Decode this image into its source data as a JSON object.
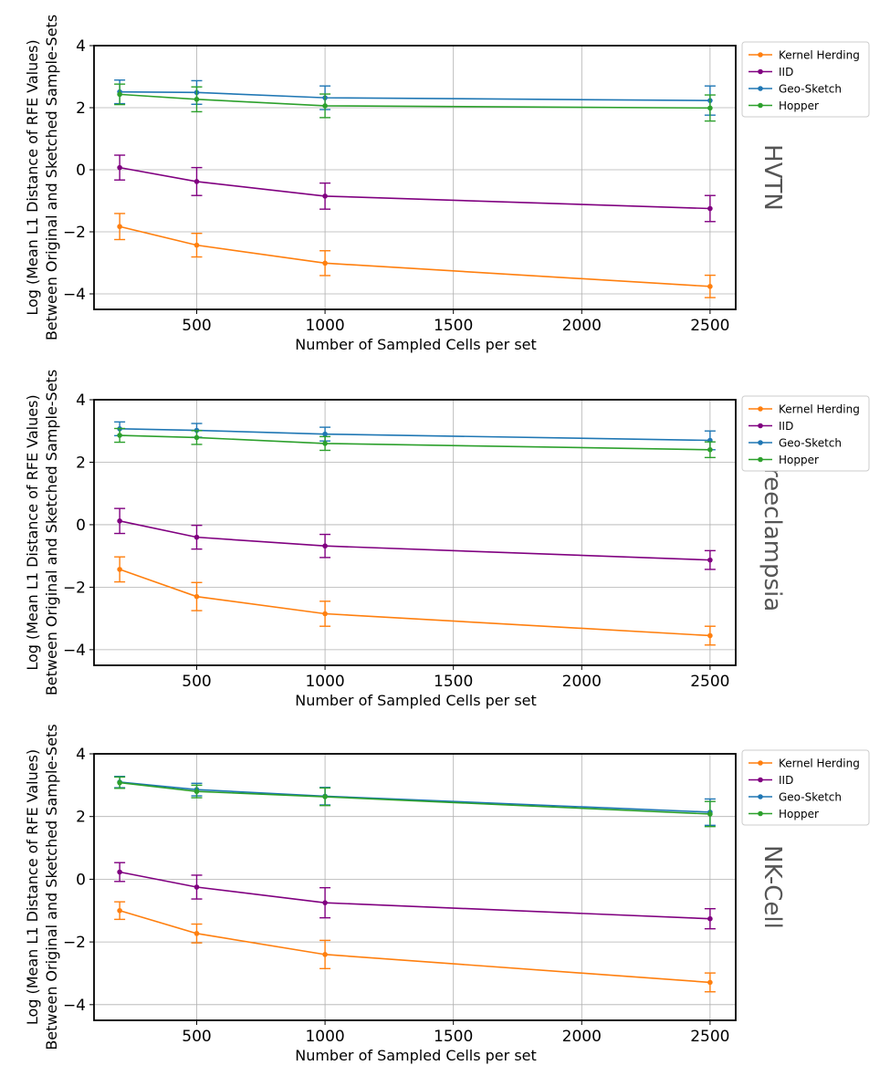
{
  "chart_data": [
    {
      "type": "line",
      "title": "",
      "side_label": "HVTN",
      "xlabel": "Number of Sampled Cells per set",
      "ylabel_line1": "Log (Mean L1 Distance of RFE Values)",
      "ylabel_line2": "Between Original and Sketched Sample-Sets",
      "x": [
        200,
        500,
        1000,
        2500
      ],
      "xlim": [
        100,
        2600
      ],
      "ylim": [
        -4.5,
        4
      ],
      "xticks": [
        500,
        1000,
        1500,
        2000,
        2500
      ],
      "yticks": [
        -4,
        -2,
        0,
        2,
        4
      ],
      "grid": true,
      "legend": "top-right-outside",
      "series": [
        {
          "name": "Kernel Herding",
          "color": "#ff7f0e",
          "values": [
            -1.83,
            -2.43,
            -3.01,
            -3.76
          ],
          "errors": [
            0.42,
            0.38,
            0.4,
            0.36
          ]
        },
        {
          "name": "IID",
          "color": "#800080",
          "values": [
            0.07,
            -0.38,
            -0.85,
            -1.25
          ],
          "errors": [
            0.4,
            0.45,
            0.42,
            0.42
          ]
        },
        {
          "name": "Geo-Sketch",
          "color": "#1f77b4",
          "values": [
            2.51,
            2.49,
            2.32,
            2.23
          ],
          "errors": [
            0.38,
            0.38,
            0.38,
            0.47
          ]
        },
        {
          "name": "Hopper",
          "color": "#2ca02c",
          "values": [
            2.43,
            2.27,
            2.06,
            1.99
          ],
          "errors": [
            0.33,
            0.4,
            0.38,
            0.42
          ]
        }
      ]
    },
    {
      "type": "line",
      "title": "",
      "side_label": "Preeclampsia",
      "xlabel": "Number of Sampled Cells per set",
      "ylabel_line1": "Log (Mean L1 Distance of RFE Values)",
      "ylabel_line2": "Between Original and Sketched Sample-Sets",
      "x": [
        200,
        500,
        1000,
        2500
      ],
      "xlim": [
        100,
        2600
      ],
      "ylim": [
        -4.5,
        4
      ],
      "xticks": [
        500,
        1000,
        1500,
        2000,
        2500
      ],
      "yticks": [
        -4,
        -2,
        0,
        2,
        4
      ],
      "grid": true,
      "legend": "top-right-outside",
      "series": [
        {
          "name": "Kernel Herding",
          "color": "#ff7f0e",
          "values": [
            -1.43,
            -2.3,
            -2.85,
            -3.55
          ],
          "errors": [
            0.4,
            0.45,
            0.4,
            0.3
          ]
        },
        {
          "name": "IID",
          "color": "#800080",
          "values": [
            0.12,
            -0.4,
            -0.68,
            -1.13
          ],
          "errors": [
            0.4,
            0.38,
            0.37,
            0.3
          ]
        },
        {
          "name": "Geo-Sketch",
          "color": "#1f77b4",
          "values": [
            3.07,
            3.02,
            2.9,
            2.7
          ],
          "errors": [
            0.22,
            0.22,
            0.22,
            0.3
          ]
        },
        {
          "name": "Hopper",
          "color": "#2ca02c",
          "values": [
            2.86,
            2.79,
            2.6,
            2.4
          ],
          "errors": [
            0.22,
            0.22,
            0.22,
            0.25
          ]
        }
      ]
    },
    {
      "type": "line",
      "title": "",
      "side_label": "NK-Cell",
      "xlabel": "Number of Sampled Cells per set",
      "ylabel_line1": "Log (Mean L1 Distance of RFE Values)",
      "ylabel_line2": "Between Original and Sketched Sample-Sets",
      "x": [
        200,
        500,
        1000,
        2500
      ],
      "xlim": [
        100,
        2600
      ],
      "ylim": [
        -4.5,
        4
      ],
      "xticks": [
        500,
        1000,
        1500,
        2000,
        2500
      ],
      "yticks": [
        -4,
        -2,
        0,
        2,
        4
      ],
      "grid": true,
      "legend": "top-right-outside",
      "series": [
        {
          "name": "Kernel Herding",
          "color": "#ff7f0e",
          "values": [
            -1.0,
            -1.73,
            -2.4,
            -3.29
          ],
          "errors": [
            0.28,
            0.3,
            0.45,
            0.3
          ]
        },
        {
          "name": "IID",
          "color": "#800080",
          "values": [
            0.23,
            -0.25,
            -0.75,
            -1.26
          ],
          "errors": [
            0.3,
            0.38,
            0.48,
            0.32
          ]
        },
        {
          "name": "Geo-Sketch",
          "color": "#1f77b4",
          "values": [
            3.1,
            2.86,
            2.65,
            2.14
          ],
          "errors": [
            0.18,
            0.2,
            0.28,
            0.42
          ]
        },
        {
          "name": "Hopper",
          "color": "#2ca02c",
          "values": [
            3.08,
            2.8,
            2.63,
            2.08
          ],
          "errors": [
            0.18,
            0.2,
            0.28,
            0.4
          ]
        }
      ]
    }
  ]
}
